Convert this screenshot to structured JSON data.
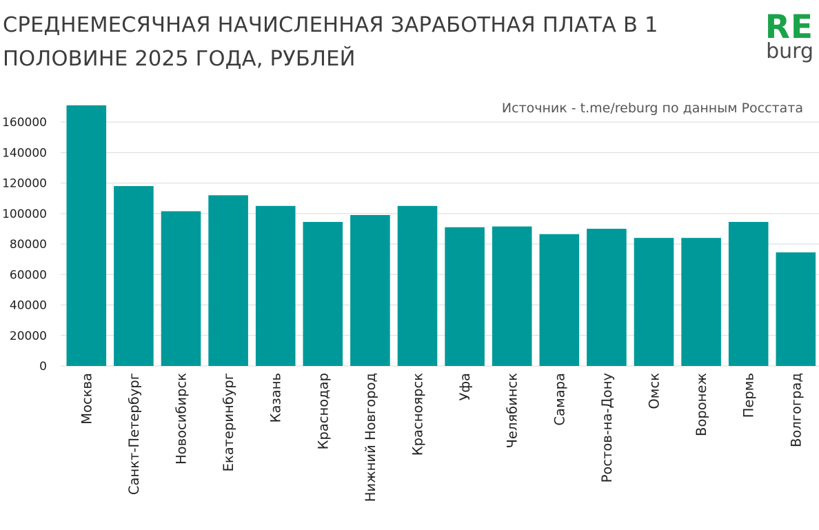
{
  "title": {
    "line1": "СРЕДНЕМЕСЯЧНАЯ НАЧИСЛЕННАЯ ЗАРАБОТНАЯ ПЛАТА В 1",
    "line2": "ПОЛОВИНЕ 2025 ГОДА, РУБЛЕЙ"
  },
  "logo": {
    "top": "RE",
    "bottom": "burg"
  },
  "source": "Источник - t.me/reburg по данным Росстата",
  "colors": {
    "bar": "#009999",
    "logo": "#1aa34a",
    "grid": "#d9d9d9"
  },
  "chart_data": {
    "type": "bar",
    "title": "СРЕДНЕМЕСЯЧНАЯ НАЧИСЛЕННАЯ ЗАРАБОТНАЯ ПЛАТА В 1 ПОЛОВИНЕ 2025 ГОДА, РУБЛЕЙ",
    "xlabel": "",
    "ylabel": "",
    "ylim": [
      0,
      170000
    ],
    "yticks": [
      0,
      20000,
      40000,
      60000,
      80000,
      100000,
      120000,
      140000,
      160000
    ],
    "grid": true,
    "categories": [
      "Москва",
      "Санкт-Петербург",
      "Новосибирск",
      "Екатеринбург",
      "Казань",
      "Краснодар",
      "Нижний Новгород",
      "Красноярск",
      "Уфа",
      "Челябинск",
      "Самара",
      "Ростов-на-Дону",
      "Омск",
      "Воронеж",
      "Пермь",
      "Волгоград"
    ],
    "values": [
      171000,
      118000,
      101500,
      112000,
      105000,
      94500,
      99000,
      105000,
      91000,
      91500,
      86500,
      90000,
      84000,
      84000,
      94500,
      74500
    ]
  }
}
